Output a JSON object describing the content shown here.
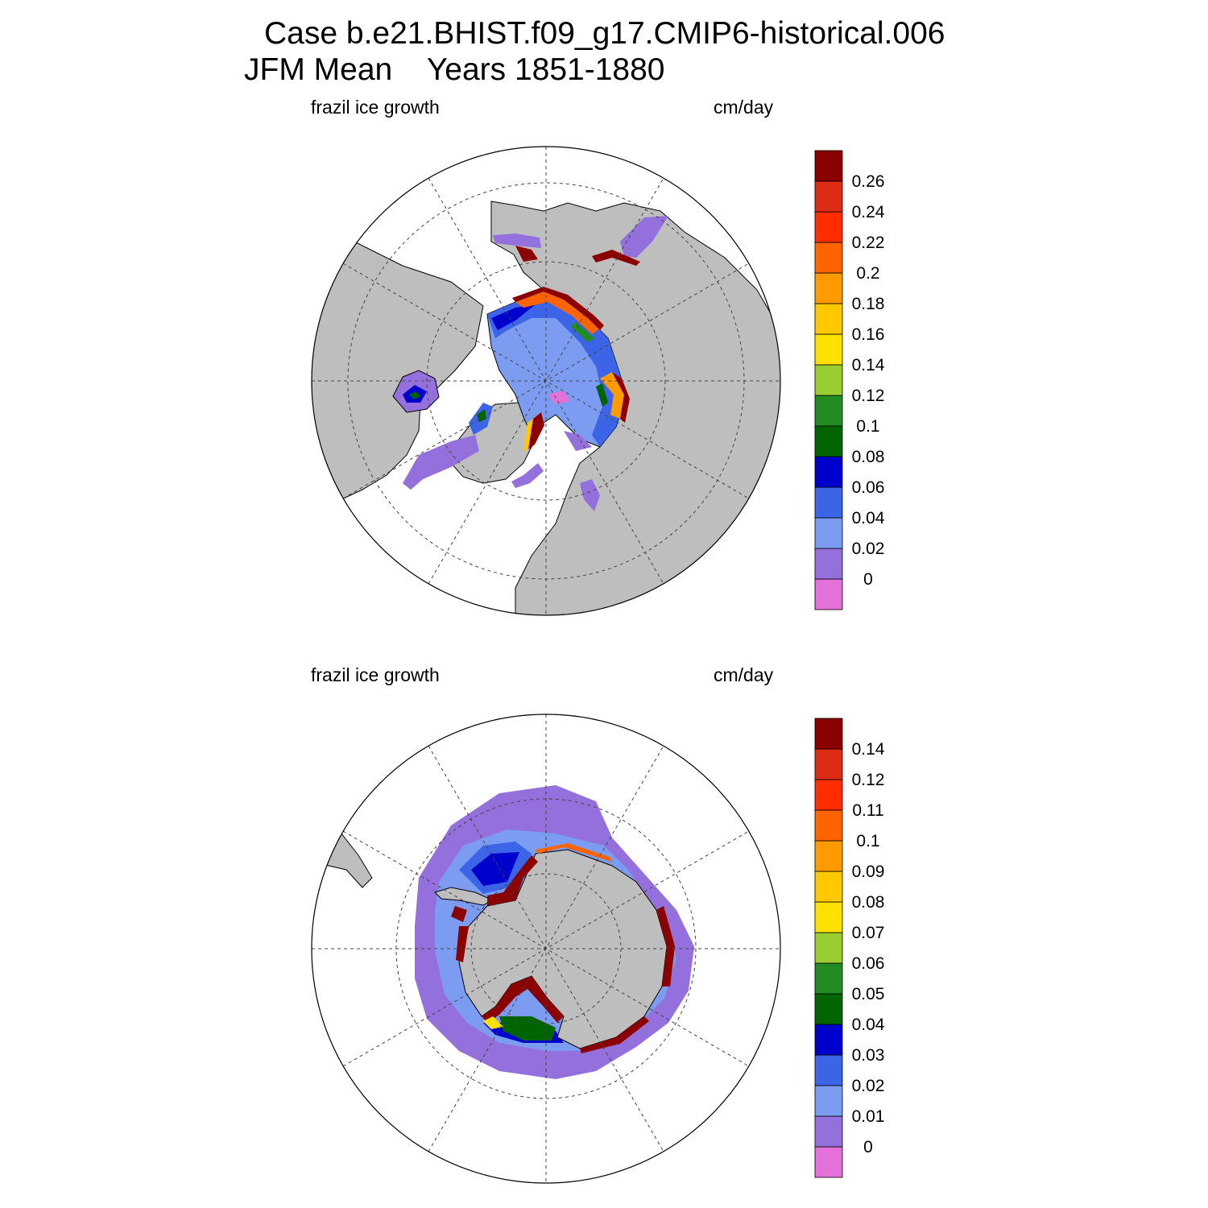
{
  "title": {
    "line1": "Case b.e21.BHIST.f09_g17.CMIP6-historical.006",
    "line2": "JFM Mean    Years 1851-1880"
  },
  "colors": {
    "land": "#bebebe",
    "background": "#ffffff",
    "scale": [
      "#e371d9",
      "#9370db",
      "#7b9cf0",
      "#3c64e6",
      "#0000cd",
      "#006400",
      "#228b22",
      "#9acd32",
      "#ffe100",
      "#ffc800",
      "#ff9b00",
      "#ff6400",
      "#ff2d00",
      "#dc2d14",
      "#8b0000"
    ]
  },
  "panels": [
    {
      "id": "north",
      "variable_label": "frazil ice growth",
      "units_label": "cm/day",
      "colorbar_labels": [
        "0",
        "0.02",
        "0.04",
        "0.06",
        "0.08",
        "0.1",
        "0.12",
        "0.14",
        "0.16",
        "0.18",
        "0.2",
        "0.22",
        "0.24",
        "0.26"
      ]
    },
    {
      "id": "south",
      "variable_label": "frazil ice growth",
      "units_label": "cm/day",
      "colorbar_labels": [
        "0",
        "0.01",
        "0.02",
        "0.03",
        "0.04",
        "0.05",
        "0.06",
        "0.07",
        "0.08",
        "0.09",
        "0.1",
        "0.11",
        "0.12",
        "0.14"
      ]
    }
  ]
}
